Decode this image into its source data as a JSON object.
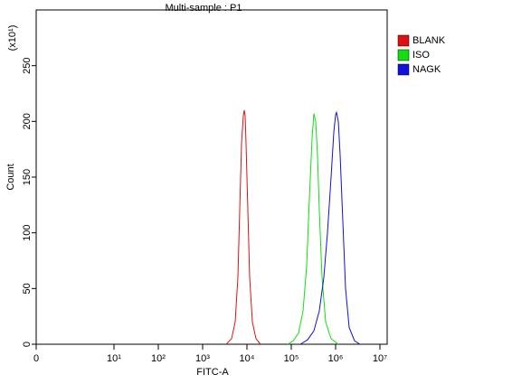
{
  "chart_data": {
    "type": "line",
    "title": "Multi-sample : P1",
    "x_label": "FITC-A",
    "y_label": "Count",
    "y_multiplier": "(x10¹)",
    "xscale": "log",
    "xlim": [
      0,
      15000000
    ],
    "xticks": [
      0,
      {
        "value": 10,
        "label": "10¹"
      },
      {
        "value": 100,
        "label": "10²"
      },
      {
        "value": 1000,
        "label": "10³"
      },
      {
        "value": 10000,
        "label": "10⁴"
      },
      {
        "value": 100000,
        "label": "10⁵"
      },
      {
        "value": 1000000,
        "label": "10⁶"
      },
      {
        "value": 10000000,
        "label": "10⁷"
      }
    ],
    "ylim": [
      0,
      300
    ],
    "yticks": [
      0,
      50,
      100,
      150,
      200,
      250
    ],
    "legend": "right",
    "series": [
      {
        "name": "BLANK",
        "color": "#e01010",
        "x": [
          3400,
          4500,
          5430,
          6250,
          6870,
          7550,
          8280,
          8680,
          9100,
          9540,
          10480,
          11510,
          13250,
          15990,
          20230
        ],
        "values": [
          0,
          5,
          20,
          60,
          120,
          180,
          205,
          210,
          205,
          180,
          120,
          60,
          20,
          5,
          0
        ]
      },
      {
        "name": "ISO",
        "color": "#10e010",
        "x": [
          82800,
          109900,
          145600,
          184100,
          222200,
          256000,
          294600,
          323600,
          355600,
          390800,
          429500,
          494300,
          597100,
          791300,
          1151000
        ],
        "values": [
          0,
          3,
          10,
          30,
          70,
          130,
          185,
          207,
          200,
          170,
          120,
          60,
          20,
          5,
          0
        ]
      },
      {
        "name": "NAGK",
        "color": "#1010e0",
        "x": [
          160000,
          232700,
          323600,
          429500,
          543000,
          655100,
          791300,
          910200,
          1000000,
          1048000,
          1151000,
          1264000,
          1456000,
          1675000,
          2023000,
          2683000,
          3557000
        ],
        "values": [
          0,
          4,
          12,
          30,
          60,
          100,
          150,
          190,
          206,
          208,
          200,
          170,
          110,
          50,
          15,
          3,
          0
        ]
      }
    ]
  }
}
